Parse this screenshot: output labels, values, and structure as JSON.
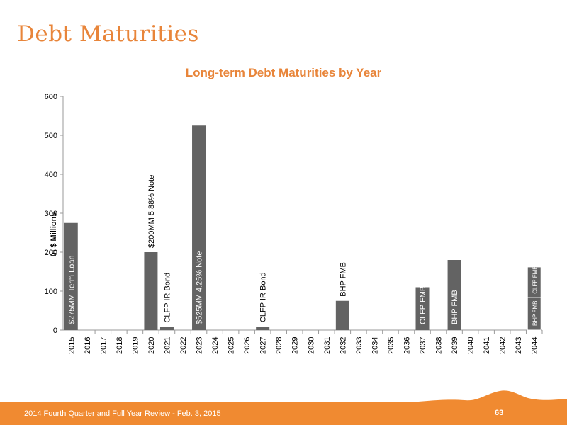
{
  "page": {
    "title": "Debt Maturities",
    "footer_text": "2014 Fourth Quarter and Full Year Review - Feb. 3, 2015",
    "page_number": "63",
    "accent_color": "#f08a31"
  },
  "chart_data": {
    "type": "bar",
    "title": "Long-term Debt Maturities by Year",
    "xlabel": "",
    "ylabel": "In $ Millions",
    "ylim": [
      0,
      600
    ],
    "yticks": [
      0,
      100,
      200,
      300,
      400,
      500,
      600
    ],
    "grid": false,
    "categories": [
      "2015",
      "2016",
      "2017",
      "2018",
      "2019",
      "2020",
      "2021",
      "2022",
      "2023",
      "2024",
      "2025",
      "2026",
      "2027",
      "2028",
      "2029",
      "2030",
      "2031",
      "2032",
      "2033",
      "2034",
      "2035",
      "2036",
      "2037",
      "2038",
      "2039",
      "2040",
      "2041",
      "2042",
      "2043",
      "2044"
    ],
    "values": [
      275,
      0,
      0,
      0,
      0,
      200,
      8,
      0,
      525,
      0,
      0,
      0,
      9,
      0,
      0,
      0,
      0,
      75,
      0,
      0,
      0,
      0,
      110,
      0,
      180,
      0,
      0,
      0,
      0,
      162
    ],
    "bar_color": "#636363",
    "title_color": "#e8853a",
    "annotations": [
      {
        "category": "2015",
        "text": "$275MM Term Loan",
        "placement": "inside"
      },
      {
        "category": "2020",
        "text": "$200MM 5.88% Note",
        "placement": "above"
      },
      {
        "category": "2021",
        "text": "CLFP IR Bond",
        "placement": "above"
      },
      {
        "category": "2023",
        "text": "$525MM 4.25% Note",
        "placement": "inside"
      },
      {
        "category": "2027",
        "text": "CLFP IR Bond",
        "placement": "above"
      },
      {
        "category": "2032",
        "text": "BHP FMB",
        "placement": "above"
      },
      {
        "category": "2037",
        "text": "CLFP FMB",
        "placement": "inside"
      },
      {
        "category": "2039",
        "text": "BHP FMB",
        "placement": "inside"
      },
      {
        "category": "2044",
        "text": "BHP FMB",
        "placement": "inside-bottom-segment"
      },
      {
        "category": "2044",
        "text": "CLFP FMB",
        "placement": "inside-top-segment"
      }
    ],
    "stacked_segments": [
      {
        "category": "2044",
        "segments": [
          {
            "name": "BHP FMB",
            "value": 84
          },
          {
            "name": "CLFP FMB",
            "value": 78
          }
        ]
      }
    ]
  }
}
